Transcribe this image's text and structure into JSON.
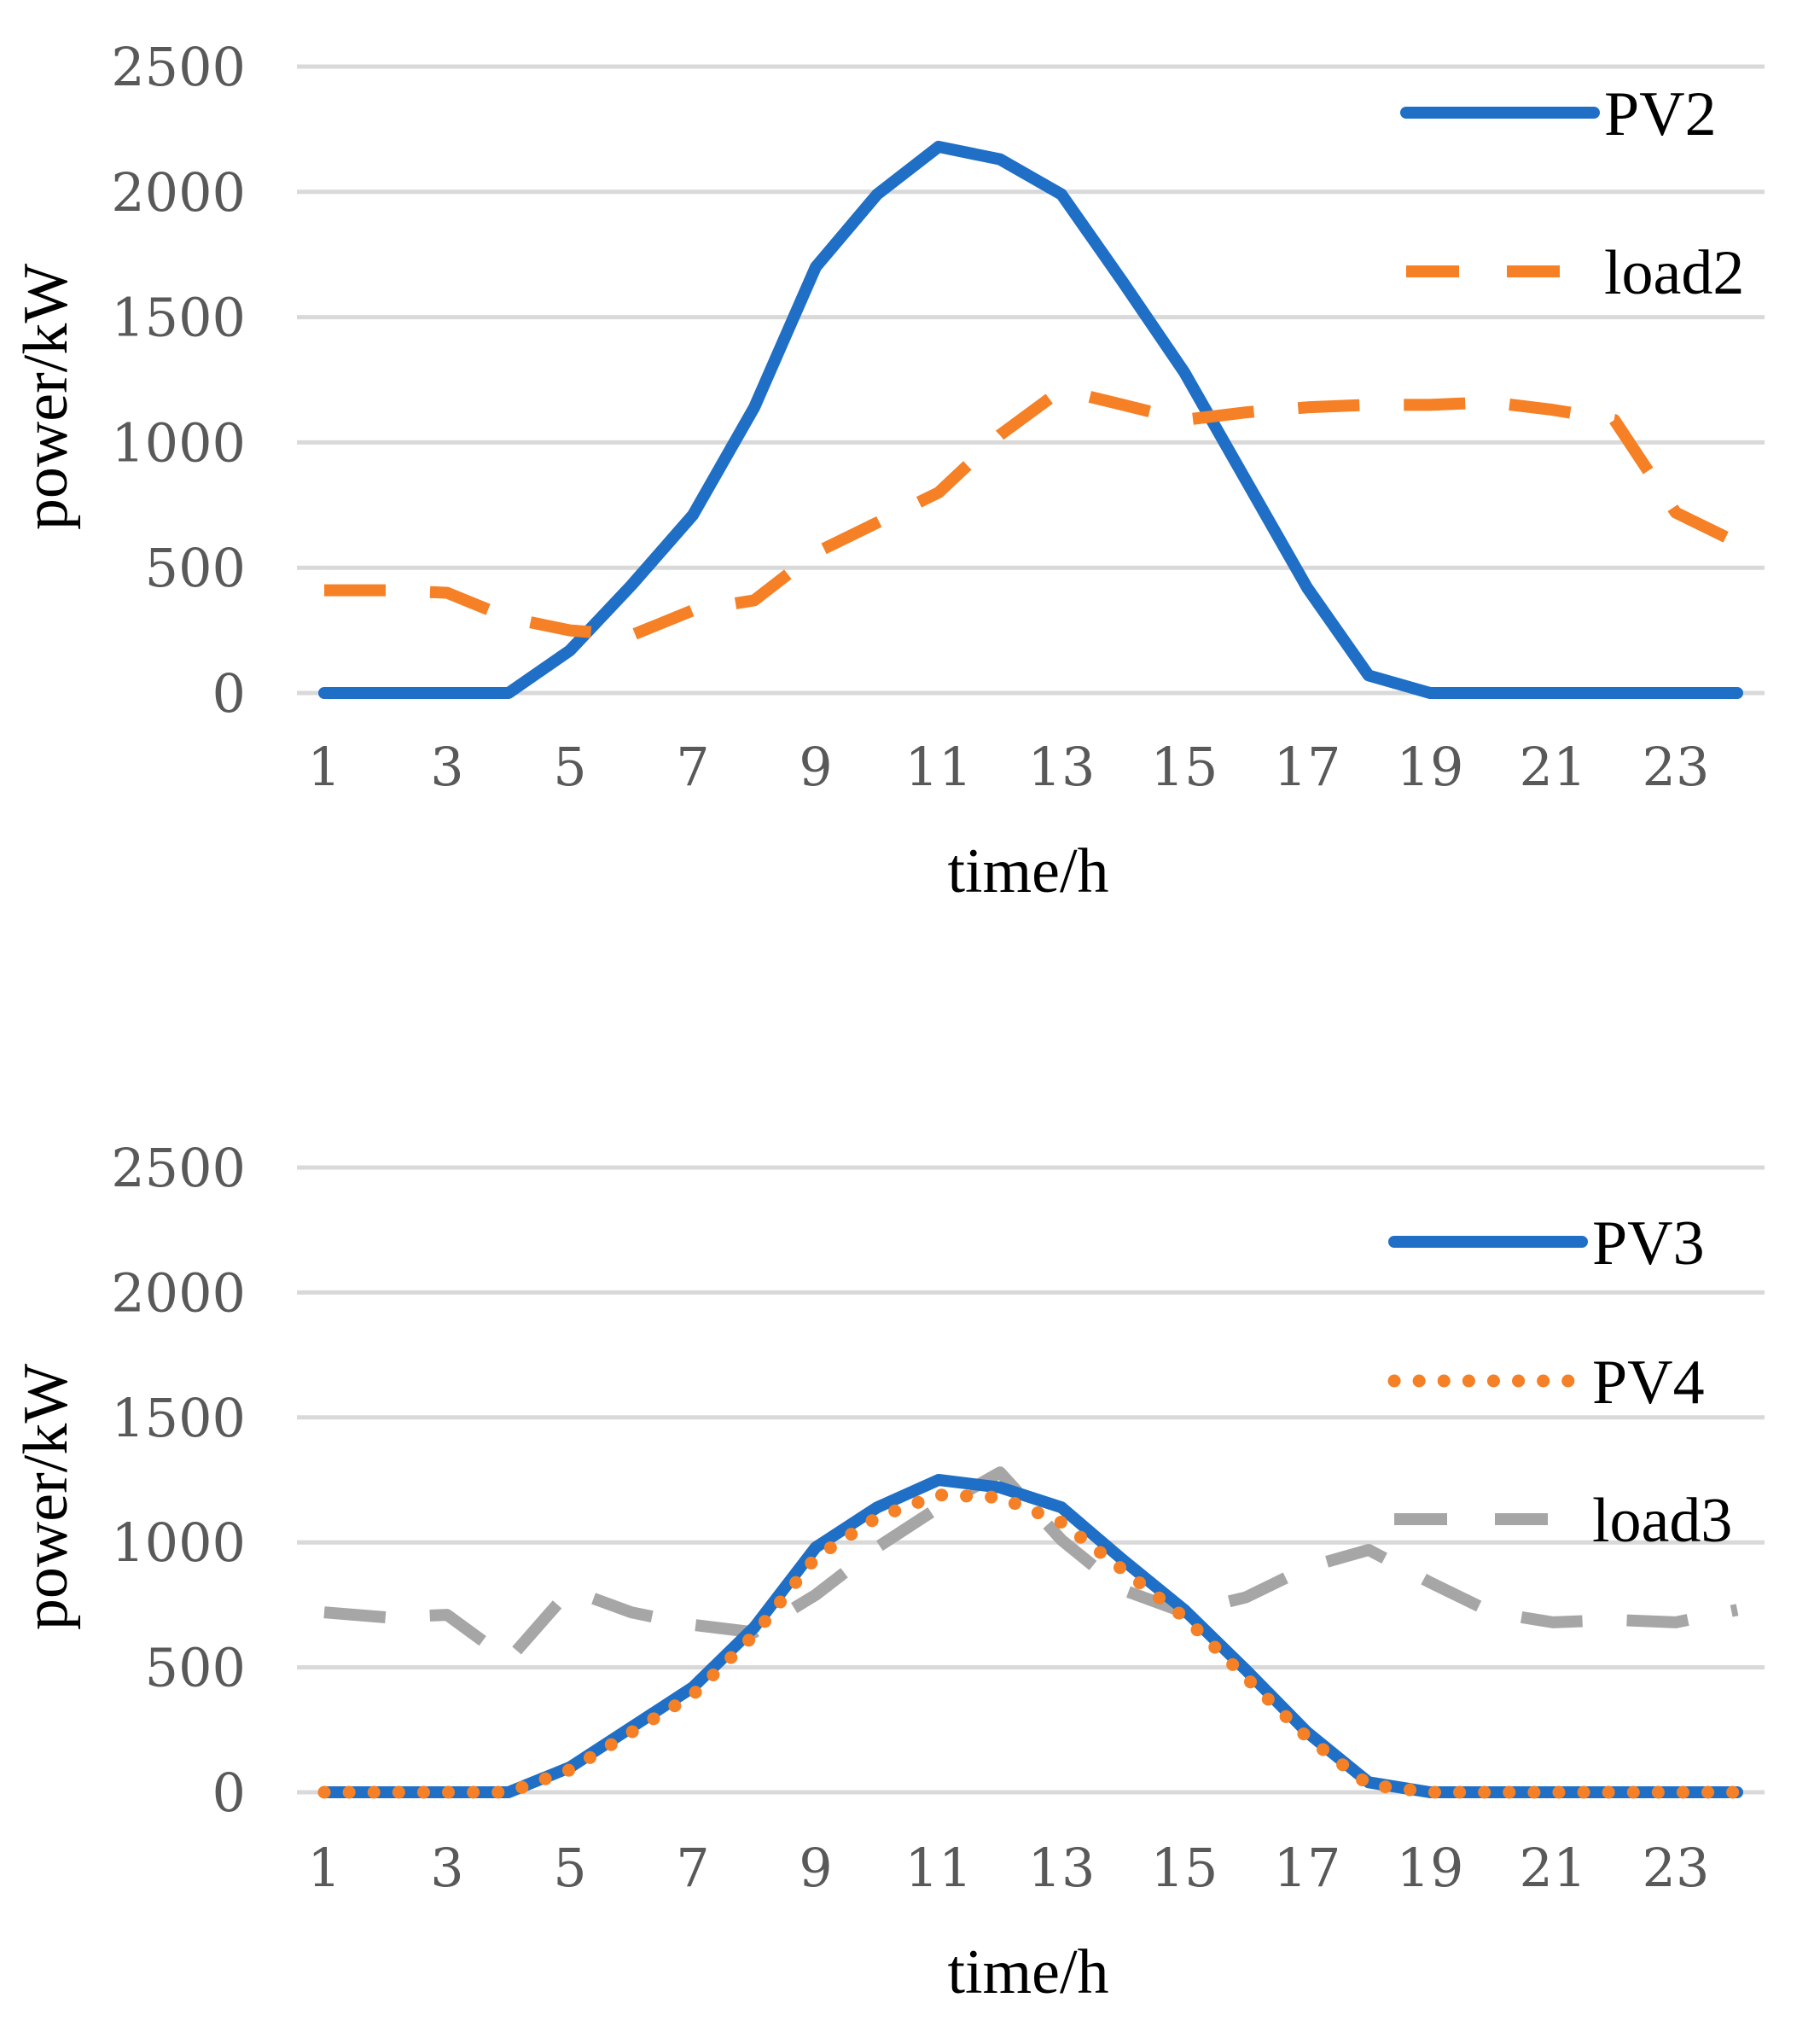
{
  "chart_data": [
    {
      "type": "line",
      "title": "",
      "xlabel": "time/h",
      "ylabel": "power/kW",
      "ylim": [
        0,
        2500
      ],
      "yticks": [
        "0",
        "500",
        "1000",
        "1500",
        "2000",
        "2500"
      ],
      "xticks": [
        "1",
        "3",
        "5",
        "7",
        "9",
        "11",
        "13",
        "15",
        "17",
        "19",
        "21",
        "23"
      ],
      "x": [
        1,
        2,
        3,
        4,
        5,
        6,
        7,
        8,
        9,
        10,
        11,
        12,
        13,
        14,
        15,
        16,
        17,
        18,
        19,
        20,
        21,
        22,
        23,
        24
      ],
      "grid": true,
      "legend_position": "top-right",
      "series": [
        {
          "name": "PV2",
          "style": "solid",
          "color": "#1f6fc6",
          "values": [
            0,
            0,
            0,
            0,
            170,
            430,
            710,
            1140,
            1700,
            1990,
            2180,
            2130,
            1990,
            1640,
            1280,
            850,
            420,
            70,
            0,
            0,
            0,
            0,
            0,
            0
          ]
        },
        {
          "name": "load2",
          "style": "dashed",
          "color": "#f58025",
          "values": [
            410,
            410,
            400,
            300,
            250,
            230,
            330,
            370,
            560,
            680,
            800,
            1030,
            1210,
            1150,
            1090,
            1120,
            1140,
            1150,
            1150,
            1160,
            1130,
            1090,
            720,
            600
          ]
        }
      ]
    },
    {
      "type": "line",
      "title": "",
      "xlabel": "time/h",
      "ylabel": "power/kW",
      "ylim": [
        0,
        2500
      ],
      "yticks": [
        "0",
        "500",
        "1000",
        "1500",
        "2000",
        "2500"
      ],
      "xticks": [
        "1",
        "3",
        "5",
        "7",
        "9",
        "11",
        "13",
        "15",
        "17",
        "19",
        "21",
        "23"
      ],
      "x": [
        1,
        2,
        3,
        4,
        5,
        6,
        7,
        8,
        9,
        10,
        11,
        12,
        13,
        14,
        15,
        16,
        17,
        18,
        19,
        20,
        21,
        22,
        23,
        24
      ],
      "grid": true,
      "legend_position": "right",
      "series": [
        {
          "name": "PV3",
          "style": "solid",
          "color": "#1f6fc6",
          "values": [
            0,
            0,
            0,
            0,
            100,
            260,
            420,
            660,
            980,
            1140,
            1250,
            1220,
            1140,
            930,
            730,
            490,
            240,
            40,
            0,
            0,
            0,
            0,
            0,
            0
          ]
        },
        {
          "name": "PV4",
          "style": "dotted",
          "color": "#f58025",
          "values": [
            0,
            0,
            0,
            0,
            90,
            240,
            390,
            630,
            940,
            1100,
            1190,
            1180,
            1080,
            890,
            700,
            460,
            220,
            30,
            0,
            0,
            0,
            0,
            0,
            0
          ]
        },
        {
          "name": "load3",
          "style": "dashed",
          "color": "#a6a6a6",
          "values": [
            720,
            700,
            710,
            530,
            810,
            720,
            670,
            640,
            790,
            980,
            1140,
            1280,
            1010,
            810,
            720,
            780,
            900,
            970,
            840,
            720,
            680,
            690,
            680,
            730
          ]
        }
      ]
    }
  ]
}
